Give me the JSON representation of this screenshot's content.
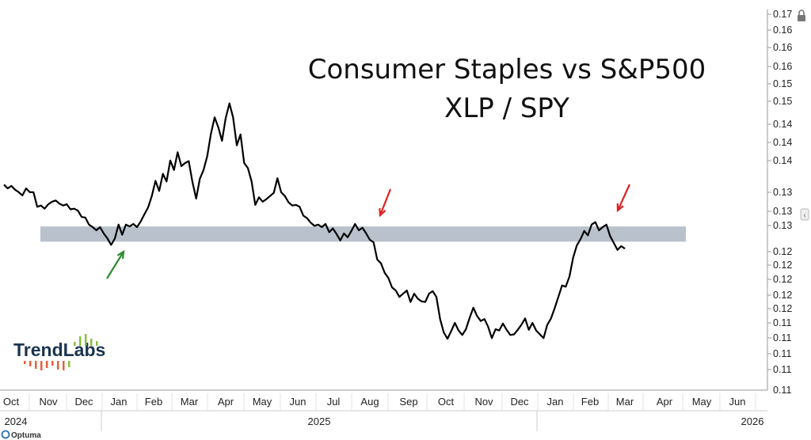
{
  "chart_data": {
    "type": "line",
    "title": "Consumer Staples vs S&P500",
    "subtitle": "XLP / SPY",
    "xlabel": "",
    "ylabel": "",
    "x_tick_labels": [
      "Oct",
      "Nov",
      "Dec",
      "Jan",
      "Feb",
      "Mar",
      "Apr",
      "May",
      "Jun",
      "Jul",
      "Aug",
      "Sep",
      "Oct",
      "Nov",
      "Dec",
      "Jan",
      "Feb",
      "Mar",
      "Apr",
      "May",
      "Jun"
    ],
    "year_labels": [
      "2024",
      "2025",
      "2026"
    ],
    "y_tick_labels": [
      "0.17",
      "0.16",
      "0.16",
      "0.16",
      "0.15",
      "0.15",
      "0.14",
      "0.14",
      "0.14",
      "0.13",
      "0.13",
      "0.13",
      "0.12",
      "0.12",
      "0.12",
      "0.12",
      "0.12",
      "0.11",
      "0.11",
      "0.11",
      "0.11"
    ],
    "ylim": [
      0.108,
      0.168
    ],
    "grid": false,
    "series": [
      {
        "color": "#000000",
        "values": [
          0.1404,
          0.1398,
          0.1402,
          0.1396,
          0.1392,
          0.1387,
          0.1398,
          0.1392,
          0.1392,
          0.1369,
          0.1371,
          0.1366,
          0.1373,
          0.1377,
          0.1379,
          0.1374,
          0.1371,
          0.1373,
          0.1365,
          0.1366,
          0.1363,
          0.1353,
          0.1352,
          0.1341,
          0.1337,
          0.1332,
          0.1337,
          0.1327,
          0.1319,
          0.1309,
          0.1319,
          0.1341,
          0.1325,
          0.1341,
          0.1338,
          0.1342,
          0.1337,
          0.1346,
          0.1357,
          0.1368,
          0.1386,
          0.141,
          0.1394,
          0.1421,
          0.1409,
          0.1442,
          0.1427,
          0.1455,
          0.1433,
          0.1438,
          0.1441,
          0.1408,
          0.1382,
          0.1413,
          0.1427,
          0.1449,
          0.1484,
          0.151,
          0.1494,
          0.1473,
          0.1509,
          0.1532,
          0.151,
          0.1466,
          0.1483,
          0.1438,
          0.143,
          0.1409,
          0.1372,
          0.1384,
          0.1377,
          0.1381,
          0.1386,
          0.1391,
          0.1414,
          0.1392,
          0.1386,
          0.1376,
          0.1371,
          0.1372,
          0.1369,
          0.1355,
          0.1351,
          0.1344,
          0.1339,
          0.1341,
          0.1337,
          0.1342,
          0.1329,
          0.1335,
          0.1326,
          0.1316,
          0.1327,
          0.1321,
          0.1331,
          0.1342,
          0.1332,
          0.1336,
          0.1327,
          0.1317,
          0.1313,
          0.1286,
          0.128,
          0.1265,
          0.1257,
          0.1242,
          0.1237,
          0.1227,
          0.1232,
          0.1237,
          0.1219,
          0.1232,
          0.1224,
          0.122,
          0.1219,
          0.1232,
          0.1236,
          0.1227,
          0.1192,
          0.1171,
          0.1161,
          0.1173,
          0.1186,
          0.1174,
          0.1167,
          0.1176,
          0.1194,
          0.121,
          0.1197,
          0.1189,
          0.1192,
          0.118,
          0.1162,
          0.1176,
          0.1174,
          0.1185,
          0.1175,
          0.1167,
          0.1168,
          0.1175,
          0.1183,
          0.1193,
          0.1175,
          0.1186,
          0.1174,
          0.1168,
          0.1162,
          0.1183,
          0.1193,
          0.1209,
          0.1227,
          0.1245,
          0.1243,
          0.1259,
          0.1289,
          0.1308,
          0.1318,
          0.1331,
          0.1324,
          0.1341,
          0.1345,
          0.1332,
          0.1337,
          0.1341,
          0.1323,
          0.1312,
          0.1301,
          0.1307,
          0.1303
        ]
      }
    ],
    "annotations": {
      "support_band": [
        0.1314,
        0.1338
      ],
      "arrows": [
        {
          "color": "#2e8b2e",
          "direction": "up"
        },
        {
          "color": "#e02020",
          "direction": "down"
        },
        {
          "color": "#e02020",
          "direction": "down"
        }
      ]
    }
  },
  "branding": {
    "logo_text": "TrendLabs",
    "footer_text": "Optuma"
  }
}
